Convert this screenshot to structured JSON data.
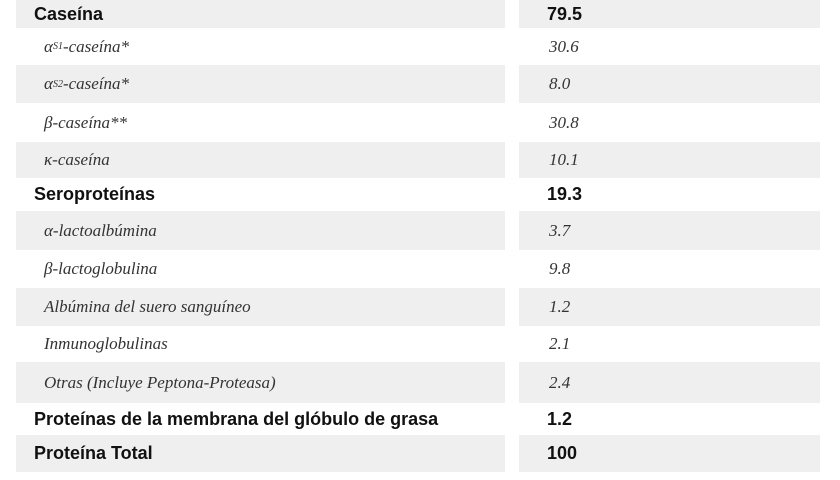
{
  "table": {
    "rows": [
      {
        "label": "Caseína",
        "value": "79.5",
        "kind": "group"
      },
      {
        "label_parts": [
          "α",
          "S1",
          "-caseína*"
        ],
        "value": "30.6",
        "kind": "item"
      },
      {
        "label_parts": [
          "α",
          "S2",
          "-caseína*"
        ],
        "value": "8.0",
        "kind": "item"
      },
      {
        "label": "β-caseína**",
        "value": "30.8",
        "kind": "item"
      },
      {
        "label": "κ-caseína",
        "value": "10.1",
        "kind": "item"
      },
      {
        "label": "Seroproteínas",
        "value": "19.3",
        "kind": "group"
      },
      {
        "label": "α-lactoalbúmina",
        "value": "3.7",
        "kind": "item"
      },
      {
        "label": "β-lactoglobulina",
        "value": "9.8",
        "kind": "item"
      },
      {
        "label": "Albúmina del suero sanguíneo",
        "value": "1.2",
        "kind": "item"
      },
      {
        "label": "Inmunoglobulinas",
        "value": "2.1",
        "kind": "item"
      },
      {
        "label": "Otras (Incluye Peptona-Proteasa)",
        "value": "2.4",
        "kind": "item"
      },
      {
        "label": "Proteínas de la membrana del glóbulo de grasa",
        "value": "1.2",
        "kind": "group"
      },
      {
        "label": "Proteína Total",
        "value": "100",
        "kind": "group"
      }
    ]
  }
}
